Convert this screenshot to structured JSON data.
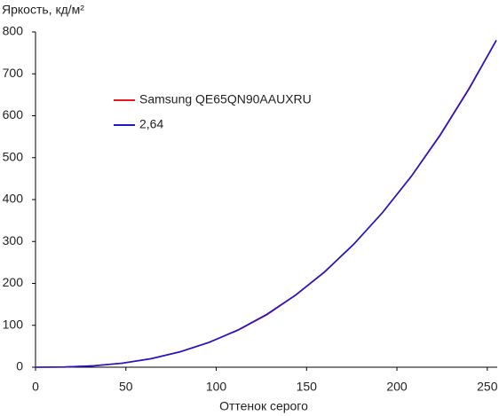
{
  "chart_data": {
    "type": "line",
    "title": "Яркость, кд/м²",
    "x_label": "Оттенок серого",
    "x": [
      0,
      16,
      32,
      48,
      64,
      80,
      96,
      112,
      128,
      144,
      160,
      176,
      192,
      208,
      224,
      240,
      255
    ],
    "series": [
      {
        "name": "Samsung QE65QN90AAUXRU",
        "color": "#e8141e",
        "values": [
          0,
          0.6,
          3.4,
          9.7,
          20.5,
          37,
          59.5,
          88,
          125,
          172,
          227,
          293,
          369,
          456,
          555,
          666,
          780
        ]
      },
      {
        "name": "2,64",
        "color": "#1a1acc",
        "values": [
          0,
          0.5,
          3.3,
          9.5,
          20.3,
          36.6,
          59.1,
          88.8,
          126.4,
          172.5,
          227.9,
          293.1,
          368.7,
          455.5,
          553.9,
          664.6,
          780
        ]
      }
    ],
    "xlim": [
      0,
      255.5
    ],
    "xticks": [
      0,
      50,
      100,
      150,
      200,
      250
    ],
    "ylim": [
      0,
      800
    ],
    "yticks": [
      0,
      100,
      200,
      300,
      400,
      500,
      600,
      700,
      800
    ],
    "grid": false
  }
}
